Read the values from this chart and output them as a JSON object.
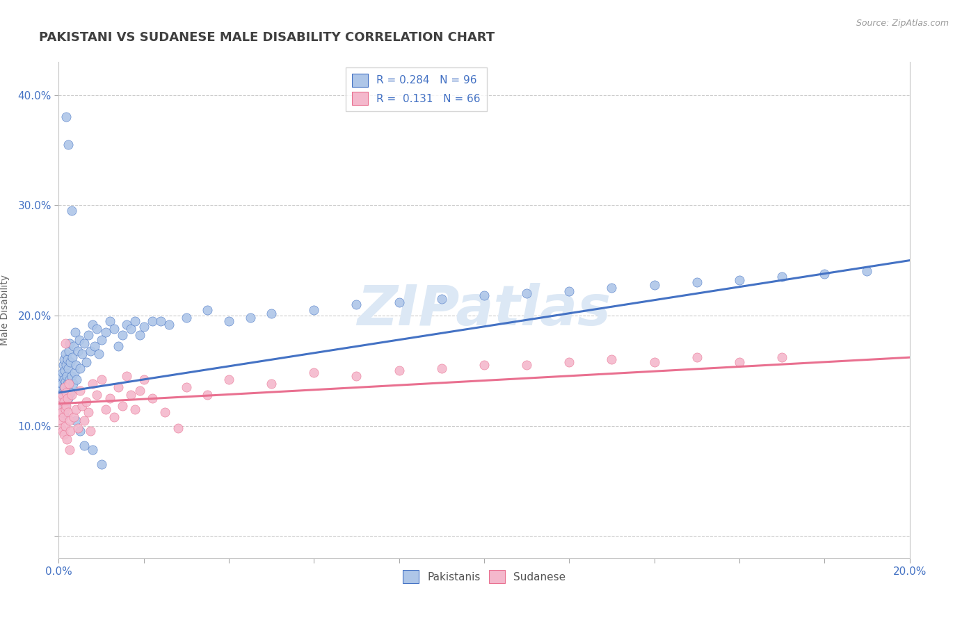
{
  "title": "PAKISTANI VS SUDANESE MALE DISABILITY CORRELATION CHART",
  "source": "Source: ZipAtlas.com",
  "ylabel": "Male Disability",
  "xlim": [
    0.0,
    0.2
  ],
  "ylim": [
    -0.02,
    0.43
  ],
  "xticks": [
    0.0,
    0.02,
    0.04,
    0.06,
    0.08,
    0.1,
    0.12,
    0.14,
    0.16,
    0.18,
    0.2
  ],
  "yticks": [
    0.0,
    0.1,
    0.2,
    0.3,
    0.4
  ],
  "ytick_labels": [
    "",
    "10.0%",
    "20.0%",
    "30.0%",
    "40.0%"
  ],
  "xtick_labels": [
    "0.0%",
    "",
    "",
    "",
    "",
    "",
    "",
    "",
    "",
    "",
    "20.0%"
  ],
  "legend_R1": "R = 0.284",
  "legend_N1": "N = 96",
  "legend_R2": "R =  0.131",
  "legend_N2": "N = 66",
  "color_pakistani": "#aec6e8",
  "color_sudanese": "#f4b8cc",
  "color_line_pakistani": "#4472c4",
  "color_line_sudanese": "#e97090",
  "color_title": "#404040",
  "color_axis_text": "#4472c4",
  "watermark_color": "#dce8f5",
  "pakistani_x": [
    0.0003,
    0.0004,
    0.0005,
    0.0005,
    0.0006,
    0.0007,
    0.0007,
    0.0008,
    0.0008,
    0.0009,
    0.001,
    0.001,
    0.0011,
    0.0011,
    0.0012,
    0.0012,
    0.0013,
    0.0013,
    0.0014,
    0.0015,
    0.0015,
    0.0016,
    0.0016,
    0.0017,
    0.0018,
    0.0019,
    0.002,
    0.0021,
    0.0022,
    0.0023,
    0.0024,
    0.0025,
    0.0026,
    0.0027,
    0.0028,
    0.003,
    0.0032,
    0.0033,
    0.0035,
    0.0037,
    0.0038,
    0.004,
    0.0042,
    0.0045,
    0.0048,
    0.005,
    0.0055,
    0.006,
    0.0065,
    0.007,
    0.0075,
    0.008,
    0.0085,
    0.009,
    0.0095,
    0.01,
    0.011,
    0.012,
    0.013,
    0.014,
    0.015,
    0.016,
    0.017,
    0.018,
    0.019,
    0.02,
    0.022,
    0.024,
    0.026,
    0.03,
    0.035,
    0.04,
    0.045,
    0.05,
    0.06,
    0.07,
    0.08,
    0.09,
    0.1,
    0.11,
    0.12,
    0.13,
    0.14,
    0.15,
    0.16,
    0.17,
    0.18,
    0.19,
    0.0018,
    0.0022,
    0.003,
    0.004,
    0.005,
    0.006,
    0.008,
    0.01
  ],
  "pakistani_y": [
    0.135,
    0.128,
    0.14,
    0.12,
    0.132,
    0.145,
    0.118,
    0.138,
    0.122,
    0.13,
    0.148,
    0.115,
    0.155,
    0.125,
    0.142,
    0.11,
    0.16,
    0.135,
    0.15,
    0.128,
    0.165,
    0.14,
    0.118,
    0.155,
    0.132,
    0.145,
    0.16,
    0.138,
    0.125,
    0.152,
    0.168,
    0.142,
    0.175,
    0.13,
    0.158,
    0.145,
    0.162,
    0.138,
    0.172,
    0.148,
    0.185,
    0.155,
    0.142,
    0.168,
    0.178,
    0.152,
    0.165,
    0.175,
    0.158,
    0.182,
    0.168,
    0.192,
    0.172,
    0.188,
    0.165,
    0.178,
    0.185,
    0.195,
    0.188,
    0.172,
    0.182,
    0.192,
    0.188,
    0.195,
    0.182,
    0.19,
    0.195,
    0.195,
    0.192,
    0.198,
    0.205,
    0.195,
    0.198,
    0.202,
    0.205,
    0.21,
    0.212,
    0.215,
    0.218,
    0.22,
    0.222,
    0.225,
    0.228,
    0.23,
    0.232,
    0.235,
    0.238,
    0.24,
    0.38,
    0.355,
    0.295,
    0.105,
    0.095,
    0.082,
    0.078,
    0.065
  ],
  "sudanese_x": [
    0.0003,
    0.0004,
    0.0005,
    0.0006,
    0.0007,
    0.0008,
    0.0009,
    0.001,
    0.0011,
    0.0012,
    0.0013,
    0.0014,
    0.0015,
    0.0016,
    0.0017,
    0.0018,
    0.0019,
    0.002,
    0.0022,
    0.0024,
    0.0026,
    0.0028,
    0.003,
    0.0035,
    0.004,
    0.0045,
    0.005,
    0.0055,
    0.006,
    0.0065,
    0.007,
    0.0075,
    0.008,
    0.009,
    0.01,
    0.011,
    0.012,
    0.013,
    0.014,
    0.015,
    0.016,
    0.017,
    0.018,
    0.019,
    0.02,
    0.022,
    0.025,
    0.028,
    0.03,
    0.035,
    0.04,
    0.05,
    0.06,
    0.07,
    0.08,
    0.09,
    0.1,
    0.11,
    0.12,
    0.13,
    0.14,
    0.15,
    0.16,
    0.17,
    0.0015,
    0.0025
  ],
  "sudanese_y": [
    0.11,
    0.105,
    0.118,
    0.098,
    0.112,
    0.125,
    0.095,
    0.128,
    0.108,
    0.122,
    0.092,
    0.135,
    0.115,
    0.1,
    0.13,
    0.118,
    0.088,
    0.125,
    0.112,
    0.138,
    0.105,
    0.095,
    0.128,
    0.108,
    0.115,
    0.098,
    0.132,
    0.118,
    0.105,
    0.122,
    0.112,
    0.095,
    0.138,
    0.128,
    0.142,
    0.115,
    0.125,
    0.108,
    0.135,
    0.118,
    0.145,
    0.128,
    0.115,
    0.132,
    0.142,
    0.125,
    0.112,
    0.098,
    0.135,
    0.128,
    0.142,
    0.138,
    0.148,
    0.145,
    0.15,
    0.152,
    0.155,
    0.155,
    0.158,
    0.16,
    0.158,
    0.162,
    0.158,
    0.162,
    0.175,
    0.078
  ]
}
